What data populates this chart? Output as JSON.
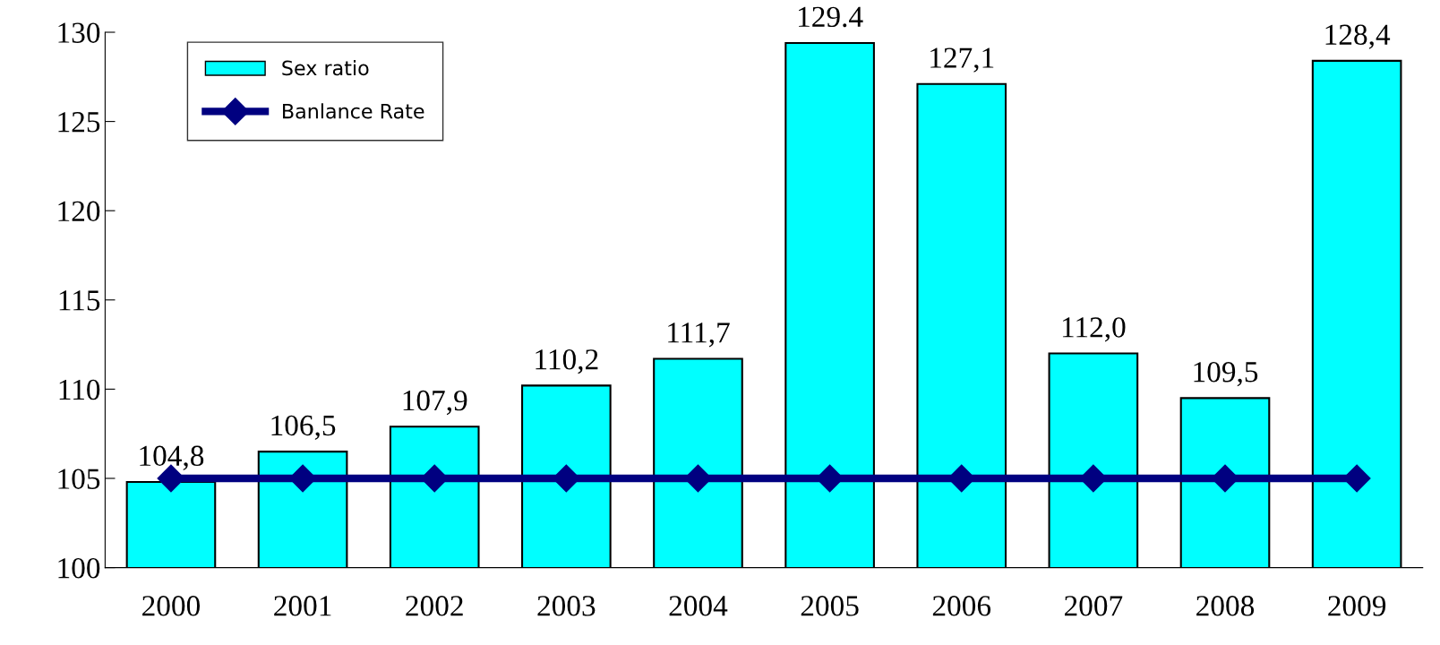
{
  "chart_data": {
    "type": "bar",
    "categories": [
      "2000",
      "2001",
      "2002",
      "2003",
      "2004",
      "2005",
      "2006",
      "2007",
      "2008",
      "2009"
    ],
    "series": [
      {
        "name": "Sex ratio",
        "color": "#00ffff",
        "values": [
          104.8,
          106.5,
          107.9,
          110.2,
          111.7,
          129.4,
          127.1,
          112.0,
          109.5,
          128.4
        ],
        "value_labels": [
          "104,8",
          "106,5",
          "107,9",
          "110,2",
          "111,7",
          "129.4",
          "127,1",
          "112,0",
          "109,5",
          "128,4"
        ]
      },
      {
        "name": "Banlance Rate",
        "type": "line",
        "color": "#000080",
        "marker": "diamond",
        "values": [
          105,
          105,
          105,
          105,
          105,
          105,
          105,
          105,
          105,
          105
        ]
      }
    ],
    "ylim": [
      100,
      130
    ],
    "yticks": [
      100,
      105,
      110,
      115,
      120,
      125,
      130
    ],
    "grid": false,
    "legend": "top left"
  }
}
